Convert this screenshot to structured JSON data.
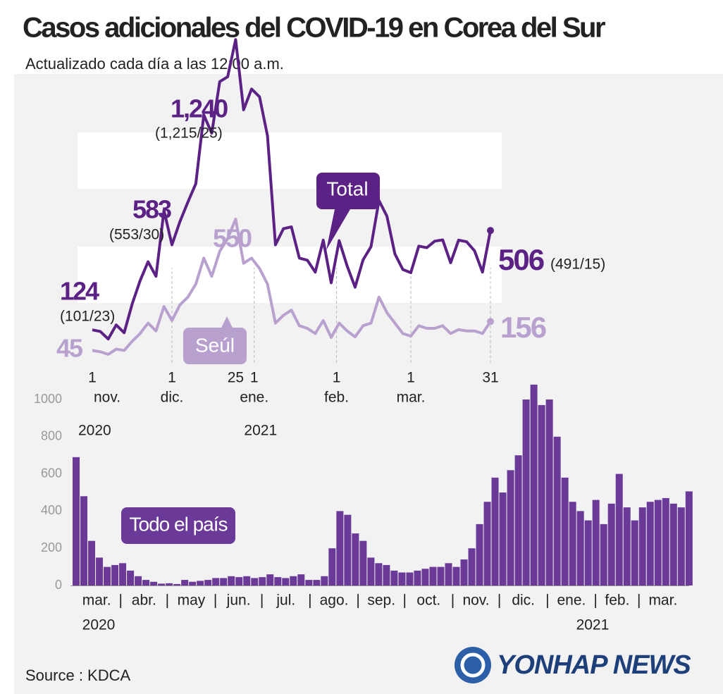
{
  "header": {
    "title": "Casos adicionales del COVID-19 en Corea del Sur",
    "subtitle": "Actualizado cada día a las 12:00 a.m."
  },
  "chart_data": [
    {
      "type": "line",
      "x": [
        0,
        3,
        6,
        9,
        12,
        15,
        18,
        21,
        24,
        27,
        30,
        33,
        36,
        39,
        42,
        45,
        48,
        51,
        54,
        57,
        60,
        63,
        66,
        69,
        72,
        75,
        78,
        81,
        84,
        87,
        90,
        93,
        96,
        99,
        102,
        105,
        108,
        111,
        114,
        117,
        120,
        123,
        126,
        129,
        132,
        135,
        138,
        141,
        144,
        147,
        150
      ],
      "xlim": [
        0,
        150
      ],
      "ylim": [
        0,
        1300
      ],
      "xticks": [
        {
          "value": 0,
          "label": "1"
        },
        {
          "value": 30,
          "label": "1"
        },
        {
          "value": 54,
          "label": "25"
        },
        {
          "value": 61,
          "label": "1"
        },
        {
          "value": 92,
          "label": "1"
        },
        {
          "value": 120,
          "label": "1"
        },
        {
          "value": 150,
          "label": "31"
        }
      ],
      "month_labels": [
        "nov.",
        "dic.",
        "ene.",
        "feb.",
        "mar."
      ],
      "year_labels": [
        "2020",
        "2021"
      ],
      "series": [
        {
          "name": "Total",
          "color": "#5b2185",
          "values": [
            124,
            118,
            89,
            143,
            113,
            223,
            313,
            386,
            330,
            583,
            451,
            540,
            615,
            686,
            950,
            880,
            1078,
            1097,
            1240,
            970,
            1050,
            1020,
            870,
            451,
            513,
            520,
            400,
            392,
            346,
            469,
            305,
            467,
            370,
            288,
            393,
            444,
            621,
            561,
            416,
            356,
            344,
            446,
            440,
            465,
            470,
            382,
            469,
            463,
            428,
            346,
            506
          ]
        },
        {
          "name": "Seúl",
          "color": "#b9a1cf",
          "values": [
            45,
            40,
            30,
            50,
            45,
            80,
            110,
            150,
            120,
            214,
            160,
            220,
            250,
            300,
            400,
            330,
            426,
            475,
            550,
            380,
            400,
            360,
            300,
            150,
            180,
            200,
            140,
            130,
            110,
            160,
            95,
            150,
            120,
            97,
            140,
            150,
            250,
            190,
            150,
            110,
            100,
            140,
            130,
            130,
            140,
            110,
            125,
            120,
            120,
            110,
            156
          ]
        }
      ],
      "annotations": [
        "124",
        "(101/23)",
        "45",
        "583",
        "(553/30)",
        "1,240",
        "(1,215/25)",
        "550",
        "506",
        "(491/15)",
        "156"
      ]
    },
    {
      "type": "bar",
      "x": [
        0,
        5,
        10,
        15,
        20,
        25,
        30,
        35,
        40,
        45,
        50,
        55,
        60,
        65,
        70,
        75,
        80,
        85,
        90,
        95,
        100,
        105,
        110,
        115,
        120,
        125,
        130,
        135,
        140,
        145,
        150,
        155,
        160,
        165,
        170,
        175,
        180,
        185,
        190,
        195,
        200,
        205,
        210,
        215,
        220,
        225,
        230,
        235,
        240,
        245,
        250,
        255,
        260,
        265,
        270,
        275,
        280,
        285,
        290,
        295,
        300,
        305,
        310,
        315,
        320,
        325,
        330,
        335,
        340,
        345,
        350,
        355,
        360,
        365,
        370,
        375,
        380,
        385,
        390,
        395
      ],
      "xlim": [
        0,
        396
      ],
      "ylim": [
        0,
        1000
      ],
      "yticks": [
        0,
        200,
        400,
        600,
        800,
        1000
      ],
      "xticks": [
        {
          "value": 31,
          "label": "|"
        },
        {
          "value": 61,
          "label": "|"
        },
        {
          "value": 92,
          "label": "|"
        },
        {
          "value": 122,
          "label": "|"
        },
        {
          "value": 153,
          "label": "|"
        },
        {
          "value": 184,
          "label": "|"
        },
        {
          "value": 214,
          "label": "|"
        },
        {
          "value": 245,
          "label": "|"
        },
        {
          "value": 275,
          "label": "|"
        },
        {
          "value": 306,
          "label": "|"
        },
        {
          "value": 337,
          "label": "|"
        },
        {
          "value": 365,
          "label": "|"
        }
      ],
      "months": [
        "mar.",
        "abr.",
        "may",
        "jun.",
        "jul.",
        "ago.",
        "sep.",
        "oct.",
        "nov.",
        "dic.",
        "ene.",
        "feb.",
        "mar."
      ],
      "year_labels": [
        "2020",
        "2021"
      ],
      "series": [
        {
          "name": "Todo el país",
          "color": "#6b3a98",
          "values": [
            690,
            480,
            240,
            150,
            100,
            110,
            120,
            80,
            50,
            30,
            20,
            10,
            12,
            8,
            30,
            20,
            25,
            30,
            40,
            40,
            50,
            45,
            50,
            40,
            45,
            60,
            45,
            40,
            50,
            60,
            30,
            30,
            50,
            200,
            400,
            380,
            280,
            240,
            150,
            120,
            110,
            80,
            70,
            70,
            80,
            90,
            100,
            100,
            120,
            100,
            140,
            200,
            330,
            450,
            580,
            500,
            620,
            700,
            1000,
            1080,
            970,
            1000,
            800,
            580,
            450,
            400,
            350,
            460,
            330,
            440,
            600,
            420,
            350,
            420,
            450,
            460,
            470,
            440,
            420,
            506
          ]
        }
      ]
    }
  ],
  "footer": {
    "source": "Source : KDCA",
    "logo": "YONHAP NEWS"
  }
}
